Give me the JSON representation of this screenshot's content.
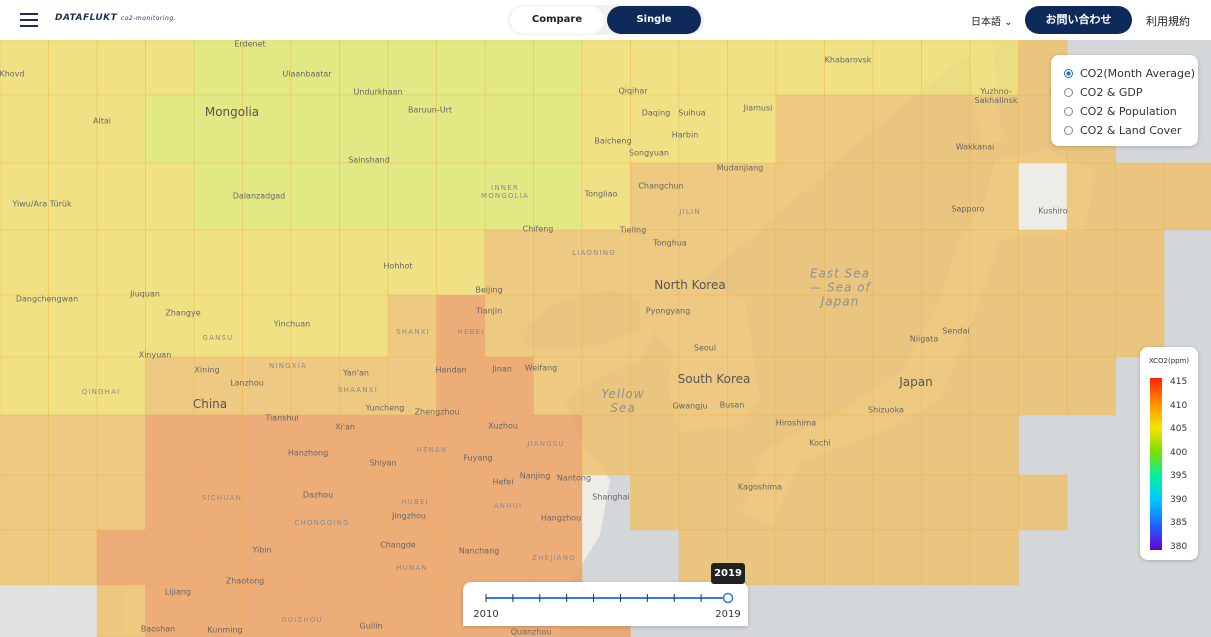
{
  "header": {
    "logo": "DATAFLUKT",
    "logo_sub": "co2-monitoring.",
    "tabs": [
      "Compare",
      "Single"
    ],
    "active_tab": 1,
    "language": "日本語",
    "contact": "お問い合わせ",
    "terms": "利用規約"
  },
  "layers": {
    "options": [
      "CO2(Month Average)",
      "CO2 & GDP",
      "CO2 & Population",
      "CO2 & Land Cover"
    ],
    "selected": 0
  },
  "legend": {
    "title": "XCO2(ppm)",
    "ticks": [
      415,
      410,
      405,
      400,
      395,
      390,
      385,
      380
    ]
  },
  "slider": {
    "min": 2010,
    "max": 2019,
    "value": 2019
  },
  "map": {
    "labels": [
      "Mongolia",
      "China",
      "North Korea",
      "South Korea",
      "Japan",
      "Yellow\nSea",
      "East Sea\n— Sea of\nJapan",
      "INNER\nMONGOLIA",
      "LIAONING",
      "SHANXI",
      "HEBEI",
      "SHAANXI",
      "HENAN",
      "JIANGSU",
      "SICHUAN",
      "HUBEI",
      "ANHUI",
      "ZHEJIANG",
      "HUNAN",
      "GANSU",
      "NINGXIA",
      "QINGHAI",
      "CHONGQING",
      "GUIZHOU",
      "JILIN",
      "Ulaanbaatar",
      "Erdenet",
      "Undurkhaan",
      "Baruun-Urt",
      "Sainshand",
      "Dalanzadgad",
      "Altai",
      "Khovd",
      "Yiwu/Ara Türük",
      "Hohhot",
      "Beijing",
      "Tianjin",
      "Chifeng",
      "Tongliao",
      "Qiqihar",
      "Daqing",
      "Suihua",
      "Harbin",
      "Jiamusi",
      "Baicheng",
      "Songyuan",
      "Changchun",
      "Tieling",
      "Tonghua",
      "Mudanjiang",
      "Khabarovsk",
      "Yuzhno-\nSakhalinsk",
      "Wakkanai",
      "Sapporo",
      "Kushiro",
      "Pyongyang",
      "Seoul",
      "Gwangju",
      "Busan",
      "Niigata",
      "Sendai",
      "Shizuoka",
      "Hiroshima",
      "Kochi",
      "Kagoshima",
      "Shanghai",
      "Nanjing",
      "Hangzhou",
      "Hefei",
      "Nantong",
      "Xuzhou",
      "Jinan",
      "Weifang",
      "Handan",
      "Zhengzhou",
      "Yuncheng",
      "Xi'an",
      "Tianshui",
      "Lanzhou",
      "Xining",
      "Yinchuan",
      "Zhangye",
      "Jiuquan",
      "Dangchengwan",
      "Xinyuan",
      "Yan'an",
      "Hanzhong",
      "Shiyan",
      "Fuyang",
      "Dazhou",
      "Jingzhou",
      "Changde",
      "Nanchang",
      "Yibin",
      "Zhaotong",
      "Lijiang",
      "Kunming",
      "Baoshan",
      "Guilin",
      "Quanzhou"
    ]
  }
}
